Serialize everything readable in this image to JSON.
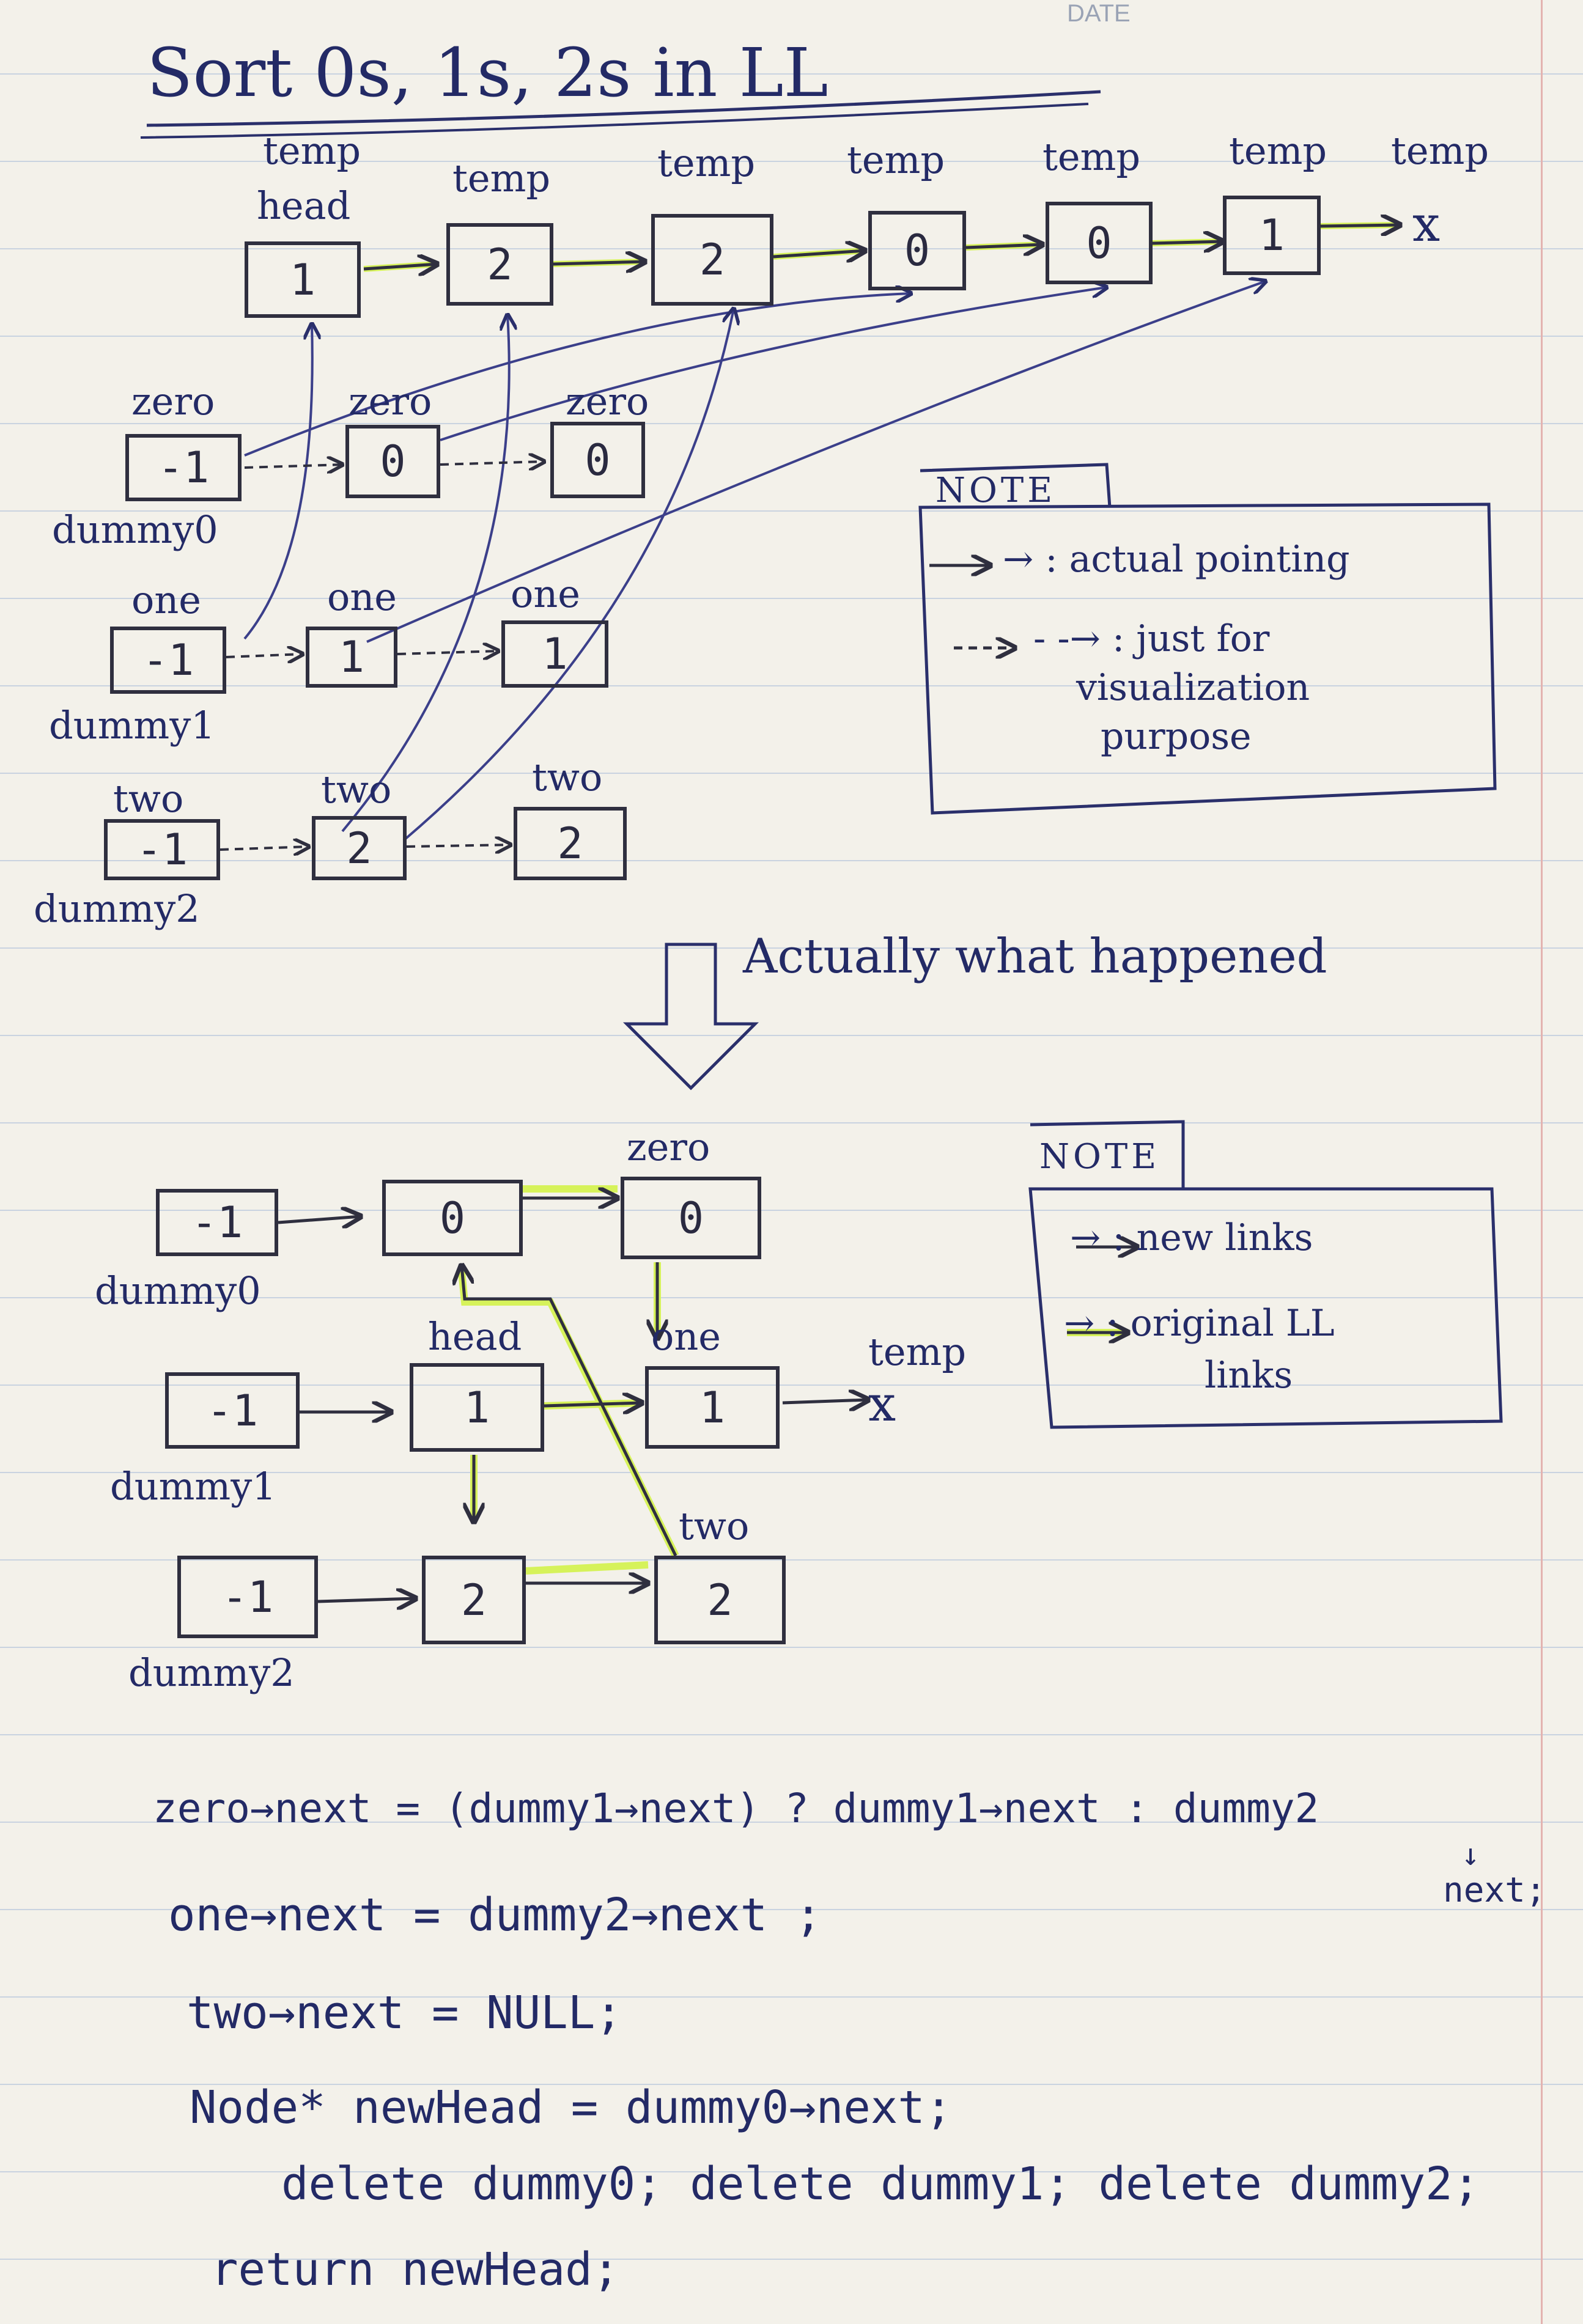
{
  "date_label": "DATE",
  "title": "Sort 0s, 1s, 2s in LL",
  "top": {
    "pointer_labels": [
      "temp",
      "temp",
      "temp",
      "temp",
      "temp",
      "temp",
      "temp"
    ],
    "head_label": "head",
    "nodes": [
      "1",
      "2",
      "2",
      "0",
      "0",
      "1"
    ],
    "end": "x",
    "zero_labels": [
      "zero",
      "zero",
      "zero"
    ],
    "zero_nodes": [
      "-1",
      "0",
      "0"
    ],
    "dummy0": "dummy0",
    "one_labels": [
      "one",
      "one",
      "one"
    ],
    "one_nodes": [
      "-1",
      "1",
      "1"
    ],
    "dummy1": "dummy1",
    "two_labels": [
      "two",
      "two",
      "two"
    ],
    "two_nodes": [
      "-1",
      "2",
      "2"
    ],
    "dummy2": "dummy2"
  },
  "note1": {
    "heading": "NOTE",
    "line1": "→ : actual pointing",
    "line2a": "- -→ : just for",
    "line2b": "visualization",
    "line2c": "purpose"
  },
  "transition_label": "Actually what happened",
  "bottom": {
    "zero_label": "zero",
    "head_label": "head",
    "one_label": "one",
    "temp_label": "temp",
    "two_label": "two",
    "end": "x",
    "row0": [
      "-1",
      "0",
      "0"
    ],
    "row1": [
      "-1",
      "1",
      "1"
    ],
    "row2": [
      "-1",
      "2",
      "2"
    ],
    "dummy0": "dummy0",
    "dummy1": "dummy1",
    "dummy2": "dummy2"
  },
  "note2": {
    "heading": "NOTE",
    "line1": "→ : new links",
    "line2a": "→ : original LL",
    "line2b": "links"
  },
  "code": {
    "line1": "zero→next = (dummy1→next) ? dummy1→next : dummy2",
    "line1b": "↓",
    "line1c": "next;",
    "line2": "one→next = dummy2→next ;",
    "line3": "two→next = NULL;",
    "line4": "Node* newHead = dummy0→next;",
    "line5": "delete dummy0; delete dummy1; delete dummy2;",
    "line6": "return newHead;"
  },
  "colors": {
    "ink": "#232a66",
    "highlight": "#d6f25a",
    "box": "#2f2f3f"
  }
}
